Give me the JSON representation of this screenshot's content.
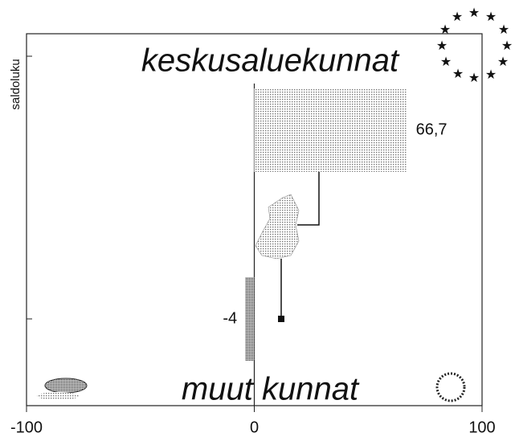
{
  "chart_data": {
    "type": "bar",
    "orientation": "horizontal",
    "categories": [
      "keskusaluekunnat",
      "muut kunnat"
    ],
    "values": [
      66.7,
      -4
    ],
    "value_labels": [
      "66,7",
      "-4"
    ],
    "colors": [
      "#bdbdbd",
      "#6e6e6e"
    ],
    "xlim": [
      -100,
      100
    ],
    "xticks": [
      -100,
      0,
      100
    ],
    "y_label": "saldoluku"
  }
}
